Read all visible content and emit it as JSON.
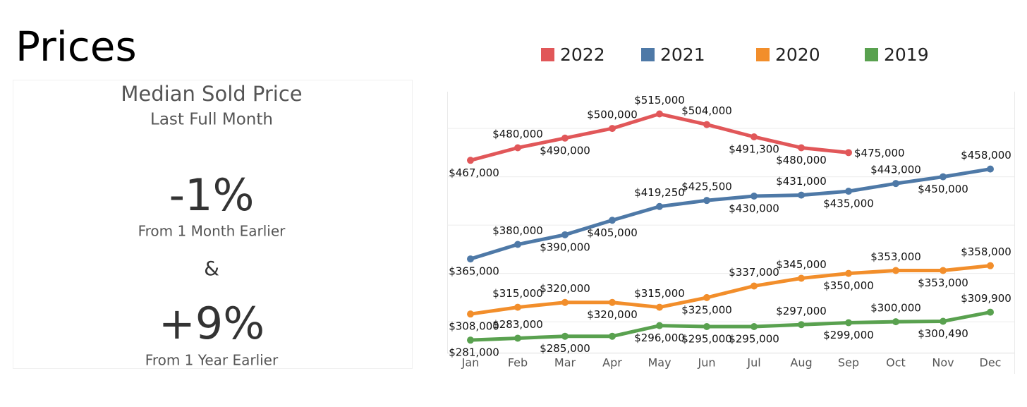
{
  "header": {
    "title": "Prices"
  },
  "kpi": {
    "title": "Median Sold Price",
    "subtitle": "Last Full Month",
    "month_change": "-1%",
    "month_caption": "From 1 Month Earlier",
    "separator": "&",
    "year_change": "+9%",
    "year_caption": "From 1 Year Earlier"
  },
  "chart_data": {
    "type": "line",
    "categories": [
      "Jan",
      "Feb",
      "Mar",
      "Apr",
      "May",
      "Jun",
      "Jul",
      "Aug",
      "Sep",
      "Oct",
      "Nov",
      "Dec"
    ],
    "ylim": [
      268000,
      538000
    ],
    "yticks": [
      300000,
      350000,
      400000,
      450000,
      500000
    ],
    "grid": true,
    "legend": "top",
    "series": [
      {
        "name": "2022",
        "color": "#e15759",
        "values": [
          467000,
          480000,
          490000,
          500000,
          515000,
          504000,
          491300,
          480000,
          475000,
          null,
          null,
          null
        ],
        "value_labels": [
          "$467,000",
          "$480,000",
          "$490,000",
          "$500,000",
          "$515,000",
          "$504,000",
          "$491,300",
          "$480,000",
          "$475,000",
          null,
          null,
          null
        ]
      },
      {
        "name": "2021",
        "color": "#4e79a7",
        "values": [
          365000,
          380000,
          390000,
          405000,
          419250,
          425500,
          430000,
          431000,
          435000,
          443000,
          450000,
          458000
        ],
        "value_labels": [
          "$365,000",
          "$380,000",
          "$390,000",
          "$405,000",
          "$419,250",
          "$425,500",
          "$430,000",
          "$431,000",
          "$435,000",
          "$443,000",
          "$450,000",
          "$458,000"
        ]
      },
      {
        "name": "2020",
        "color": "#f28e2b",
        "values": [
          308000,
          315000,
          320000,
          320000,
          315000,
          325000,
          337000,
          345000,
          350000,
          353000,
          353000,
          358000
        ],
        "value_labels": [
          "$308,000",
          "$315,000",
          "$320,000",
          "$320,000",
          "$315,000",
          "$325,000",
          "$337,000",
          "$345,000",
          "$350,000",
          "$353,000",
          "$353,000",
          "$358,000"
        ]
      },
      {
        "name": "2019",
        "color": "#59a14f",
        "values": [
          281000,
          283000,
          285000,
          285000,
          296000,
          295000,
          295000,
          297000,
          299000,
          300000,
          300490,
          309900
        ],
        "value_labels": [
          "$281,000",
          "$283,000",
          "$285,000",
          null,
          "$296,000",
          "$295,000",
          "$295,000",
          "$297,000",
          "$299,000",
          "$300,000",
          "$300,490",
          "$309,900"
        ]
      }
    ]
  }
}
